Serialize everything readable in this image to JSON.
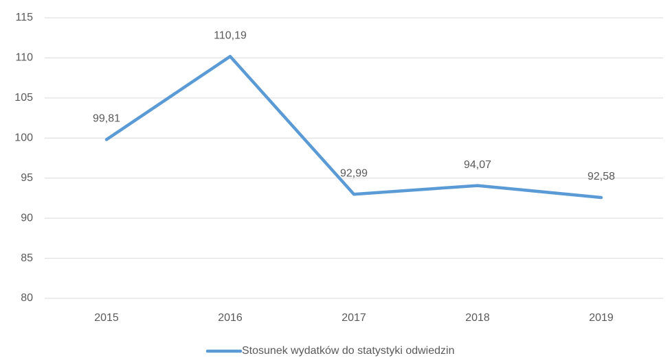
{
  "chart_data": {
    "type": "line",
    "categories": [
      "2015",
      "2016",
      "2017",
      "2018",
      "2019"
    ],
    "series": [
      {
        "name": "Stosunek wydatków do statystyki odwiedzin",
        "color": "#5b9bd5",
        "values": [
          99.81,
          110.19,
          92.99,
          94.07,
          92.58
        ],
        "value_labels": [
          "99,81",
          "110,19",
          "92,99",
          "94,07",
          "92,58"
        ]
      }
    ],
    "ylim": [
      80,
      115
    ],
    "yticks": [
      80,
      85,
      90,
      95,
      100,
      105,
      110,
      115
    ],
    "grid": true,
    "legend": "bottom"
  }
}
